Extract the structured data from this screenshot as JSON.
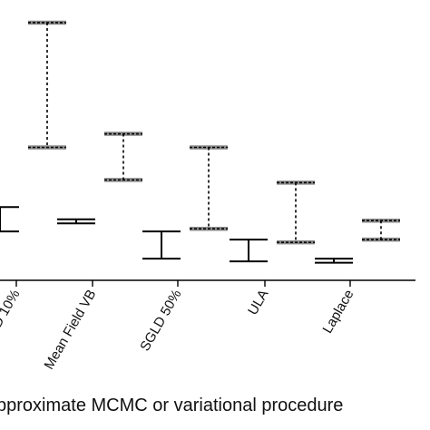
{
  "chart_data": {
    "type": "errorbar",
    "xlabel": "pproximate MCMC or variational procedure",
    "ylabel": "",
    "title": "",
    "grid": false,
    "legend": "none",
    "categories": [
      "D 10%",
      "Mean Field VB",
      "SGLD 50%",
      "ULA",
      "Laplace"
    ],
    "ylim": [
      0,
      1
    ],
    "series": [
      {
        "style": "solid",
        "color": "#000000",
        "intervals": [
          {
            "category": "D 10%",
            "low": 0.18,
            "high": 0.27
          },
          {
            "category": "Mean Field VB",
            "low": 0.21,
            "high": 0.225
          },
          {
            "category": "SGLD 50%",
            "low": 0.08,
            "high": 0.18
          },
          {
            "category": "ULA",
            "low": 0.07,
            "high": 0.15
          },
          {
            "category": "Laplace",
            "low": 0.065,
            "high": 0.08
          }
        ]
      },
      {
        "style": "dashed",
        "color": "#000000",
        "intervals": [
          {
            "category": "D 10%",
            "low": 0.49,
            "high": 0.95
          },
          {
            "category": "Mean Field VB",
            "low": 0.37,
            "high": 0.54
          },
          {
            "category": "SGLD 50%",
            "low": 0.19,
            "high": 0.49
          },
          {
            "category": "ULA",
            "low": 0.14,
            "high": 0.36
          },
          {
            "category": "Laplace",
            "low": 0.15,
            "high": 0.22
          }
        ]
      }
    ]
  }
}
